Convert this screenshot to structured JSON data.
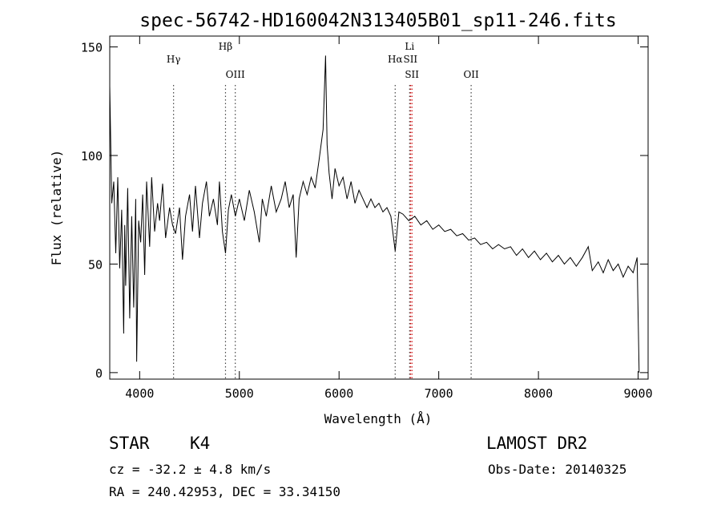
{
  "chart_data": {
    "type": "line",
    "title": "spec-56742-HD160042N313405B01_sp11-246.fits",
    "xlabel": "Wavelength (Å)",
    "ylabel": "Flux (relative)",
    "xlim": [
      3700,
      9100
    ],
    "ylim": [
      -3,
      155
    ],
    "x_ticks": [
      4000,
      5000,
      6000,
      7000,
      8000,
      9000
    ],
    "y_ticks": [
      0,
      50,
      100,
      150
    ],
    "grid": false,
    "series": [
      {
        "points": [
          [
            3700,
            132
          ],
          [
            3720,
            78
          ],
          [
            3740,
            88
          ],
          [
            3760,
            55
          ],
          [
            3780,
            90
          ],
          [
            3800,
            48
          ],
          [
            3820,
            75
          ],
          [
            3840,
            18
          ],
          [
            3850,
            68
          ],
          [
            3860,
            40
          ],
          [
            3880,
            85
          ],
          [
            3900,
            25
          ],
          [
            3920,
            72
          ],
          [
            3940,
            30
          ],
          [
            3960,
            80
          ],
          [
            3970,
            5
          ],
          [
            3990,
            70
          ],
          [
            4010,
            60
          ],
          [
            4030,
            82
          ],
          [
            4050,
            45
          ],
          [
            4070,
            88
          ],
          [
            4100,
            58
          ],
          [
            4120,
            90
          ],
          [
            4150,
            65
          ],
          [
            4180,
            78
          ],
          [
            4200,
            70
          ],
          [
            4230,
            87
          ],
          [
            4260,
            62
          ],
          [
            4300,
            76
          ],
          [
            4330,
            68
          ],
          [
            4360,
            64
          ],
          [
            4400,
            76
          ],
          [
            4430,
            52
          ],
          [
            4460,
            72
          ],
          [
            4500,
            82
          ],
          [
            4530,
            65
          ],
          [
            4560,
            86
          ],
          [
            4600,
            62
          ],
          [
            4630,
            78
          ],
          [
            4670,
            88
          ],
          [
            4700,
            72
          ],
          [
            4740,
            80
          ],
          [
            4780,
            68
          ],
          [
            4800,
            88
          ],
          [
            4830,
            65
          ],
          [
            4861,
            55
          ],
          [
            4890,
            75
          ],
          [
            4920,
            82
          ],
          [
            4960,
            72
          ],
          [
            5000,
            80
          ],
          [
            5050,
            70
          ],
          [
            5100,
            84
          ],
          [
            5150,
            74
          ],
          [
            5200,
            60
          ],
          [
            5230,
            80
          ],
          [
            5270,
            72
          ],
          [
            5320,
            86
          ],
          [
            5370,
            74
          ],
          [
            5420,
            80
          ],
          [
            5460,
            88
          ],
          [
            5500,
            76
          ],
          [
            5540,
            82
          ],
          [
            5570,
            53
          ],
          [
            5600,
            80
          ],
          [
            5640,
            88
          ],
          [
            5680,
            82
          ],
          [
            5720,
            90
          ],
          [
            5760,
            85
          ],
          [
            5800,
            98
          ],
          [
            5840,
            112
          ],
          [
            5865,
            146
          ],
          [
            5880,
            105
          ],
          [
            5900,
            92
          ],
          [
            5930,
            80
          ],
          [
            5960,
            94
          ],
          [
            6000,
            86
          ],
          [
            6040,
            90
          ],
          [
            6080,
            80
          ],
          [
            6120,
            88
          ],
          [
            6160,
            78
          ],
          [
            6200,
            84
          ],
          [
            6240,
            80
          ],
          [
            6280,
            76
          ],
          [
            6320,
            80
          ],
          [
            6360,
            76
          ],
          [
            6400,
            78
          ],
          [
            6440,
            74
          ],
          [
            6480,
            76
          ],
          [
            6520,
            72
          ],
          [
            6563,
            56
          ],
          [
            6600,
            74
          ],
          [
            6640,
            73
          ],
          [
            6700,
            70
          ],
          [
            6760,
            72
          ],
          [
            6820,
            68
          ],
          [
            6880,
            70
          ],
          [
            6940,
            66
          ],
          [
            7000,
            68
          ],
          [
            7060,
            65
          ],
          [
            7120,
            66
          ],
          [
            7180,
            63
          ],
          [
            7240,
            64
          ],
          [
            7300,
            61
          ],
          [
            7360,
            62
          ],
          [
            7420,
            59
          ],
          [
            7480,
            60
          ],
          [
            7540,
            57
          ],
          [
            7600,
            59
          ],
          [
            7660,
            57
          ],
          [
            7720,
            58
          ],
          [
            7780,
            54
          ],
          [
            7840,
            57
          ],
          [
            7900,
            53
          ],
          [
            7960,
            56
          ],
          [
            8020,
            52
          ],
          [
            8080,
            55
          ],
          [
            8140,
            51
          ],
          [
            8200,
            54
          ],
          [
            8260,
            50
          ],
          [
            8320,
            53
          ],
          [
            8380,
            49
          ],
          [
            8440,
            53
          ],
          [
            8500,
            58
          ],
          [
            8540,
            47
          ],
          [
            8600,
            51
          ],
          [
            8650,
            46
          ],
          [
            8700,
            52
          ],
          [
            8750,
            47
          ],
          [
            8800,
            50
          ],
          [
            8850,
            44
          ],
          [
            8900,
            49
          ],
          [
            8950,
            46
          ],
          [
            8990,
            53
          ],
          [
            9000,
            25
          ],
          [
            9010,
            0
          ]
        ]
      }
    ],
    "spectral_lines": [
      {
        "label": "Hγ",
        "wavelength": 4340,
        "color": "#444444",
        "label_row": 2
      },
      {
        "label": "Hβ",
        "wavelength": 4861,
        "color": "#444444",
        "label_row": 1
      },
      {
        "label": "OIII",
        "wavelength": 4959,
        "color": "#444444",
        "label_row": 3
      },
      {
        "label": "Hα",
        "wavelength": 6563,
        "color": "#444444",
        "label_row": 2
      },
      {
        "label": "Li",
        "wavelength": 6708,
        "color": "#444444",
        "label_row": 1
      },
      {
        "label": "SII",
        "wavelength": 6716,
        "color": "#cc0000",
        "label_row": 2
      },
      {
        "label": "SII",
        "wavelength": 6731,
        "color": "#cc0000",
        "label_row": 3
      },
      {
        "label": "OII",
        "wavelength": 7325,
        "color": "#444444",
        "label_row": 3
      }
    ]
  },
  "info": {
    "class_label": "STAR",
    "subclass": "K4",
    "survey": "LAMOST DR2",
    "redshift": "cz = -32.2 ± 4.8 km/s",
    "obs_date": "Obs-Date: 20140325",
    "coords": "RA = 240.42953, DEC =  33.34150"
  }
}
